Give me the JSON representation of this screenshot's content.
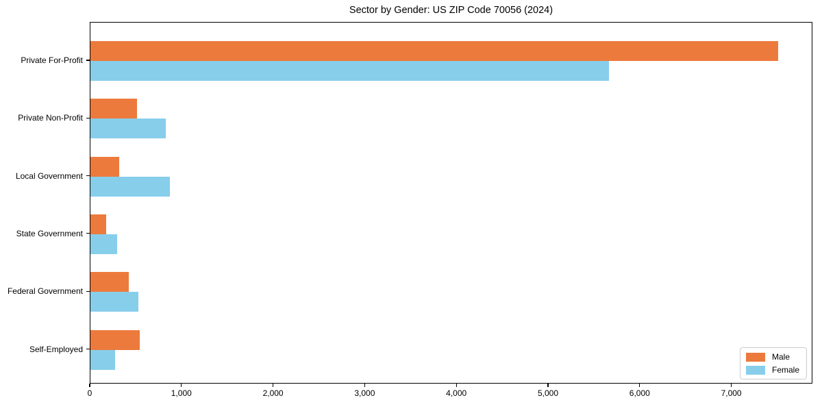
{
  "chart_data": {
    "type": "bar",
    "orientation": "horizontal",
    "title": "Sector by Gender: US ZIP Code 70056 (2024)",
    "categories": [
      "Private For-Profit",
      "Private Non-Profit",
      "Local Government",
      "State Government",
      "Federal Government",
      "Self-Employed"
    ],
    "series": [
      {
        "name": "Male",
        "color": "#EC7A3D",
        "values": [
          7500,
          510,
          310,
          170,
          420,
          540
        ]
      },
      {
        "name": "Female",
        "color": "#87CEEB",
        "values": [
          5660,
          820,
          870,
          290,
          520,
          270
        ]
      }
    ],
    "xlim": [
      0,
      7885
    ],
    "x_ticks": [
      0,
      1000,
      2000,
      3000,
      4000,
      5000,
      6000,
      7000
    ],
    "x_tick_labels": [
      "0",
      "1,000",
      "2,000",
      "3,000",
      "4,000",
      "5,000",
      "6,000",
      "7,000"
    ],
    "ylabel": "",
    "xlabel": "",
    "grid": false,
    "legend": {
      "position": "lower right",
      "entries": [
        "Male",
        "Female"
      ]
    }
  },
  "colors": {
    "axis": "#000000",
    "legend_border": "#cccccc",
    "background": "#ffffff"
  }
}
